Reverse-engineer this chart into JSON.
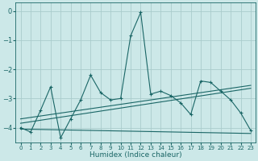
{
  "xlabel": "Humidex (Indice chaleur)",
  "bg_color": "#cce8e8",
  "grid_color": "#aacccc",
  "line_color": "#1a6666",
  "xlim": [
    -0.5,
    23.5
  ],
  "ylim": [
    -4.5,
    0.3
  ],
  "yticks": [
    0,
    -1,
    -2,
    -3,
    -4
  ],
  "xticks": [
    0,
    1,
    2,
    3,
    4,
    5,
    6,
    7,
    8,
    9,
    10,
    11,
    12,
    13,
    14,
    15,
    16,
    17,
    18,
    19,
    20,
    21,
    22,
    23
  ],
  "main_x": [
    0,
    1,
    2,
    3,
    4,
    5,
    6,
    7,
    8,
    9,
    10,
    11,
    12,
    13,
    14,
    15,
    16,
    17,
    18,
    19,
    20,
    21,
    22,
    23
  ],
  "main_y": [
    -4.0,
    -4.15,
    -3.4,
    -2.6,
    -4.35,
    -3.7,
    -3.05,
    -2.2,
    -2.8,
    -3.05,
    -3.0,
    -0.85,
    -0.05,
    -2.85,
    -2.75,
    -2.9,
    -3.15,
    -3.55,
    -2.4,
    -2.45,
    -2.75,
    -3.05,
    -3.5,
    -4.1
  ],
  "flat_line_y0": -4.05,
  "flat_line_y1": -4.2,
  "trend2_y0": -3.85,
  "trend2_y1": -2.65,
  "trend3_y0": -3.7,
  "trend3_y1": -2.55
}
